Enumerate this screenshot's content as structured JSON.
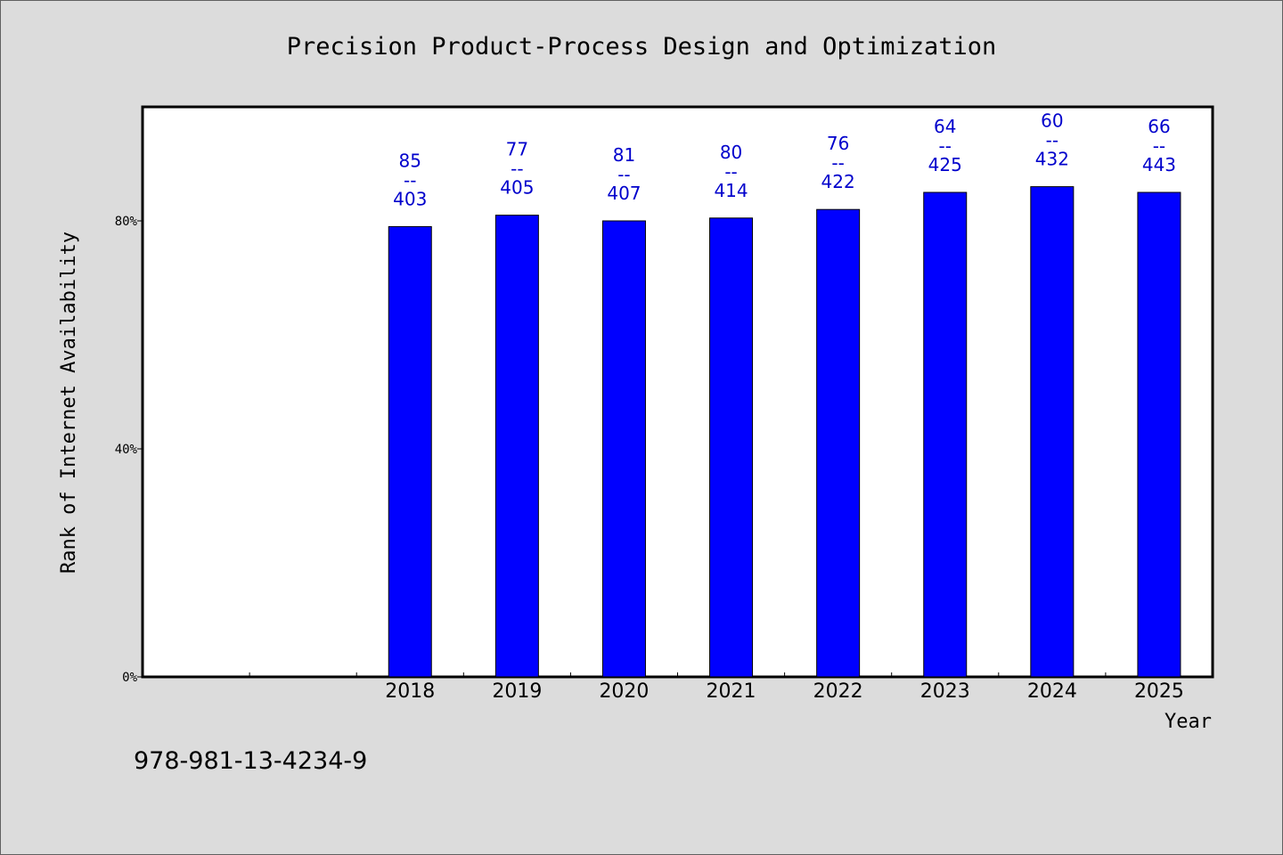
{
  "chart_data": {
    "type": "bar",
    "title": "Precision Product-Process Design and Optimization",
    "xlabel": "Year",
    "ylabel": "Rank of Internet Availability",
    "categories": [
      "",
      "",
      "2018",
      "2019",
      "2020",
      "2021",
      "2022",
      "2023",
      "2024",
      "2025"
    ],
    "values": [
      null,
      null,
      79,
      81,
      80,
      80.5,
      82,
      85,
      86,
      85
    ],
    "data_labels": [
      null,
      null,
      {
        "top": "85",
        "sep": "--",
        "bottom": "403"
      },
      {
        "top": "77",
        "sep": "--",
        "bottom": "405"
      },
      {
        "top": "81",
        "sep": "--",
        "bottom": "407"
      },
      {
        "top": "80",
        "sep": "--",
        "bottom": "414"
      },
      {
        "top": "76",
        "sep": "--",
        "bottom": "422"
      },
      {
        "top": "64",
        "sep": "--",
        "bottom": "425"
      },
      {
        "top": "60",
        "sep": "--",
        "bottom": "432"
      },
      {
        "top": "66",
        "sep": "--",
        "bottom": "443"
      }
    ],
    "yticks": [
      {
        "value": 0,
        "label": "0%"
      },
      {
        "value": 40,
        "label": "40%"
      },
      {
        "value": 80,
        "label": "80%"
      }
    ],
    "ylim": [
      0,
      100
    ],
    "grid": false,
    "bar_color": "#0000ff",
    "label_color": "#0000cc"
  },
  "footnote": "978-981-13-4234-9"
}
